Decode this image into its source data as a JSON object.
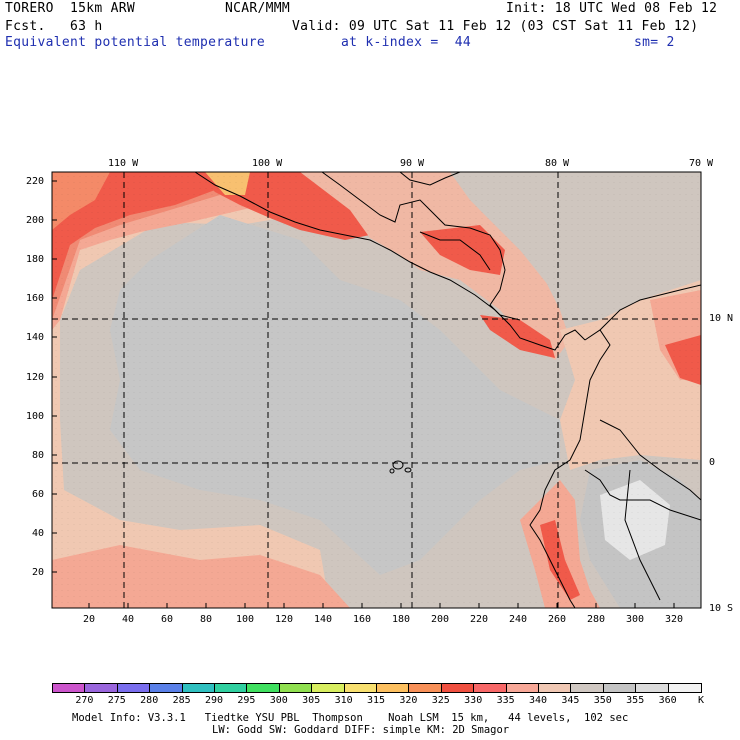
{
  "header": {
    "model": "TORERO  15km ARW",
    "center": "NCAR/MMM",
    "init": "Init: 18 UTC Wed 08 Feb 12",
    "fcst": "Fcst.   63 h",
    "valid": "Valid: 09 UTC Sat 11 Feb 12 (03 CST Sat 11 Feb 12)",
    "field": "Equivalent potential temperature",
    "level": "at k-index =  44",
    "smooth": "sm= 2"
  },
  "top_ticks": [
    "110 W",
    "100 W",
    "90 W",
    "80 W",
    "70 W"
  ],
  "left_ticks": [
    "220",
    "200",
    "180",
    "160",
    "140",
    "120",
    "100",
    "80",
    "60",
    "40",
    "20"
  ],
  "bottom_ticks": [
    "20",
    "40",
    "60",
    "80",
    "100",
    "120",
    "140",
    "160",
    "180",
    "200",
    "220",
    "240",
    "260",
    "280",
    "300",
    "320"
  ],
  "right_ticks": [
    "10 N",
    "0",
    "10 S"
  ],
  "legend": {
    "unit": "K",
    "labels": [
      "270",
      "275",
      "280",
      "285",
      "290",
      "295",
      "300",
      "305",
      "310",
      "315",
      "320",
      "325",
      "330",
      "335",
      "340",
      "345",
      "350",
      "355",
      "360"
    ],
    "colors": [
      "#cc55cc",
      "#9a66dd",
      "#7a6eee",
      "#5a80e8",
      "#30c0c0",
      "#30d0a0",
      "#40e060",
      "#90e050",
      "#d8ee60",
      "#f8e070",
      "#fdc060",
      "#f89058",
      "#f05040",
      "#f86868",
      "#f8a898",
      "#f0c8b4",
      "#d0c8c2",
      "#c4c4c4",
      "#dcdcdc",
      "#f2f2f2"
    ]
  },
  "footer": {
    "line1": "Model Info: V3.3.1   Tiedtke YSU PBL  Thompson    Noah LSM  15 km,   44 levels,  102 sec",
    "line2": "LW: Godd SW: Goddard DIFF: simple KM: 2D Smagor"
  }
}
